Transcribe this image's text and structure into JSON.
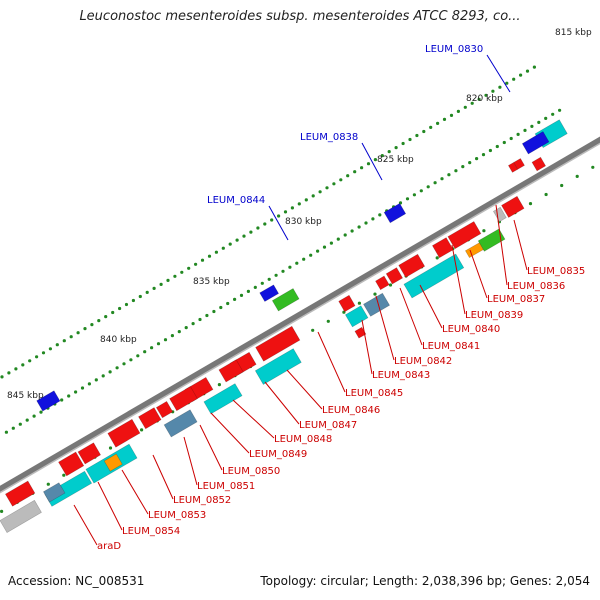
{
  "title": "Leuconostoc mesenteroides subsp. mesenteroides ATCC 8293, co...",
  "footer": {
    "accession": "Accession: NC_008531",
    "summary": "Topology: circular; Length: 2,038,396 bp; Genes: 2,054"
  },
  "kbp_labels": [
    "815 kbp",
    "820 kbp",
    "825 kbp",
    "830 kbp",
    "835 kbp",
    "840 kbp",
    "845 kbp"
  ],
  "upper_gene_labels": [
    "LEUM_0830",
    "LEUM_0838",
    "LEUM_0844"
  ],
  "lower_gene_labels": [
    "LEUM_0835",
    "LEUM_0836",
    "LEUM_0837",
    "LEUM_0839",
    "LEUM_0840",
    "LEUM_0841",
    "LEUM_0842",
    "LEUM_0843",
    "LEUM_0845",
    "LEUM_0846",
    "LEUM_0847",
    "LEUM_0848",
    "LEUM_0849",
    "LEUM_0850",
    "LEUM_0851",
    "LEUM_0852",
    "LEUM_0853",
    "LEUM_0854",
    "araD"
  ],
  "colors": {
    "forward_cds": "#ee1111",
    "reverse_cds": "#00cccc",
    "green_feature": "#33bb22",
    "blue_feature": "#1111dd",
    "grey_feature": "#bbbbbb",
    "orange_feature": "#ff9900",
    "steel_feature": "#5588aa",
    "upper_label": "#0000cc",
    "lower_label": "#cc0000",
    "backbone": "#777777",
    "tick": "#228822"
  }
}
